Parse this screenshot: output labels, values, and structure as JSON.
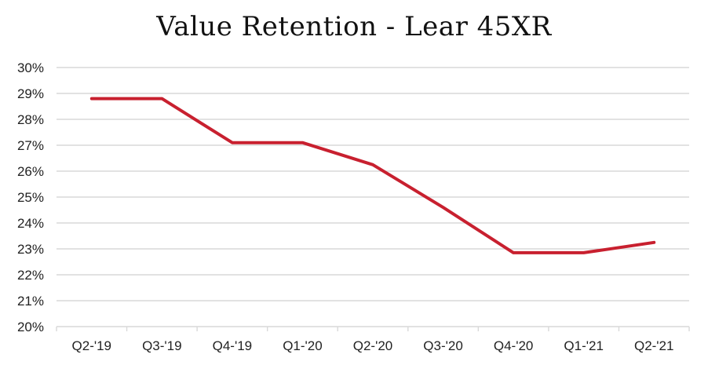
{
  "title": "Value Retention - Lear 45XR",
  "chart_data": {
    "type": "line",
    "title": "Value Retention - Lear 45XR",
    "xlabel": "",
    "ylabel": "",
    "categories": [
      "Q2-'19",
      "Q3-'19",
      "Q4-'19",
      "Q1-'20",
      "Q2-'20",
      "Q3-'20",
      "Q4-'20",
      "Q1-'21",
      "Q2-'21"
    ],
    "series": [
      {
        "values": [
          28.8,
          28.8,
          27.1,
          27.1,
          26.25,
          24.6,
          22.85,
          22.85,
          23.25
        ]
      }
    ],
    "ylim": [
      20,
      30
    ],
    "yticks": [
      "20%",
      "21%",
      "22%",
      "23%",
      "24%",
      "25%",
      "26%",
      "27%",
      "28%",
      "29%",
      "30%"
    ],
    "grid": true,
    "legend": "none",
    "line_color": "#c8202f"
  }
}
